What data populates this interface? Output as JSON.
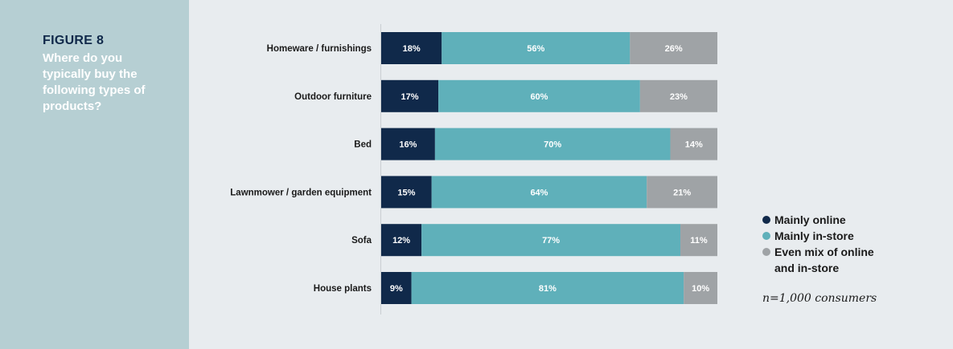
{
  "figure": {
    "label": "FIGURE 8",
    "title": "Where do you typically buy the following types of products?"
  },
  "note": "n=1,000 consumers",
  "colors": {
    "background": "#e8ecef",
    "panel": "#b6cfd3",
    "mainly_online": "#10294a",
    "mainly_instore": "#5fb0ba",
    "even_mix": "#9fa3a6"
  },
  "chart_data": {
    "type": "bar",
    "orientation": "horizontal",
    "stacked": true,
    "percent_stacked": true,
    "categories": [
      "Homeware / furnishings",
      "Outdoor furniture",
      "Bed",
      "Lawnmower / garden equipment",
      "Sofa",
      "House plants"
    ],
    "series": [
      {
        "name": "Mainly online",
        "color": "#10294a",
        "values": [
          18,
          17,
          16,
          15,
          12,
          9
        ],
        "labels": [
          "18%",
          "17%",
          "16%",
          "15%",
          "12%",
          "9%"
        ]
      },
      {
        "name": "Mainly in-store",
        "color": "#5fb0ba",
        "values": [
          56,
          60,
          70,
          64,
          77,
          81
        ],
        "labels": [
          "56%",
          "60%",
          "70%",
          "64%",
          "77%",
          "81%"
        ]
      },
      {
        "name": "Even mix of online and in-store",
        "color": "#9fa3a6",
        "values": [
          26,
          23,
          14,
          21,
          11,
          10
        ],
        "labels": [
          "26%",
          "23%",
          "14%",
          "21%",
          "11%",
          "10%"
        ]
      }
    ],
    "xlim": [
      0,
      100
    ],
    "grid": false,
    "legend_position": "right"
  }
}
